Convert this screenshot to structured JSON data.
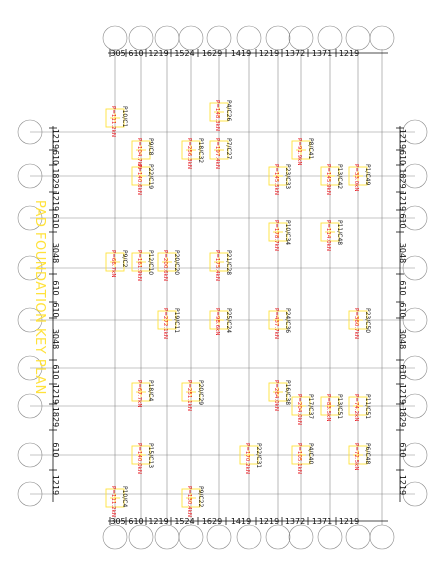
{
  "drawing": {
    "watermark": "PAD FOUNDATION KEY PLAN",
    "colors": {
      "grid": "#8a8a8a",
      "dim": "#111111",
      "pad": "#ffe23b",
      "load": "#e8141c",
      "label": "#111111"
    }
  },
  "dimensions": {
    "top": [
      "305",
      "610",
      "1219",
      "1524",
      "1629",
      "1419",
      "1219",
      "1372",
      "1371",
      "1219"
    ],
    "bottom": [
      "305",
      "610",
      "1219",
      "1524",
      "1629",
      "1419",
      "1219",
      "1372",
      "1371",
      "1219"
    ],
    "left": [
      "1219",
      "610",
      "1829",
      "1219",
      "610",
      "3048",
      "610",
      "610",
      "3048",
      "610",
      "1219",
      "1829",
      "610",
      "1219"
    ],
    "right": [
      "1219",
      "610",
      "1829",
      "1219",
      "610",
      "3048",
      "610",
      "610",
      "3048",
      "610",
      "1219",
      "1829",
      "610",
      "1219"
    ]
  },
  "pads": [
    {
      "tag": "P10/C1",
      "load": "P=111.2kN"
    },
    {
      "tag": "P9/C8",
      "load": "P=104.7kN"
    },
    {
      "tag": "P22/C19",
      "load": "P=140.6kN"
    },
    {
      "tag": "P4/C26",
      "load": "P=148.3kN"
    },
    {
      "tag": "P7/C27",
      "load": "P=197.4kN"
    },
    {
      "tag": "P18/C32",
      "load": "P=256.3kN"
    },
    {
      "tag": "P8/C41",
      "load": "P=91.9kN"
    },
    {
      "tag": "P23/C33",
      "load": "P=145.5kN"
    },
    {
      "tag": "P13/C42",
      "load": "P=145.9kN"
    },
    {
      "tag": "P1/C49",
      "load": "P=33.0kN"
    },
    {
      "tag": "P9/C2",
      "load": "P=66.7kN"
    },
    {
      "tag": "P12/C10",
      "load": "P=161.9kN"
    },
    {
      "tag": "P20/C20",
      "load": "P=200.6kN"
    },
    {
      "tag": "P21/C28",
      "load": "P=175.4kN"
    },
    {
      "tag": "P10/C34",
      "load": "P=178.7kN"
    },
    {
      "tag": "P11/C48",
      "load": "P=114.0kN"
    },
    {
      "tag": "P19/C11",
      "load": "P=272.1kN"
    },
    {
      "tag": "P25/C24",
      "load": "P=98.6kN"
    },
    {
      "tag": "P24/C36",
      "load": "P=437.7kN"
    },
    {
      "tag": "P23/C50",
      "load": "P=360.7kN"
    },
    {
      "tag": "P18/C4",
      "load": "P=67.7kN"
    },
    {
      "tag": "P20/C29",
      "load": "P=251.1kN"
    },
    {
      "tag": "P16/C38",
      "load": "P=264.0kN"
    },
    {
      "tag": "P17/C37",
      "load": "P=204.0kN"
    },
    {
      "tag": "P13/C51",
      "load": "P=83.5kN"
    },
    {
      "tag": "P11/C51",
      "load": "P=74.2kN"
    },
    {
      "tag": "P15/C13",
      "load": "P=140.0kN"
    },
    {
      "tag": "P22/C31",
      "load": "P=170.2kN"
    },
    {
      "tag": "P4/C40",
      "load": "P=105.1kN"
    },
    {
      "tag": "P6/C48",
      "load": "P=72.5kN"
    },
    {
      "tag": "P10/C4",
      "load": "P=111.2kN"
    },
    {
      "tag": "P9/C22",
      "load": "P=130.4kN"
    }
  ]
}
